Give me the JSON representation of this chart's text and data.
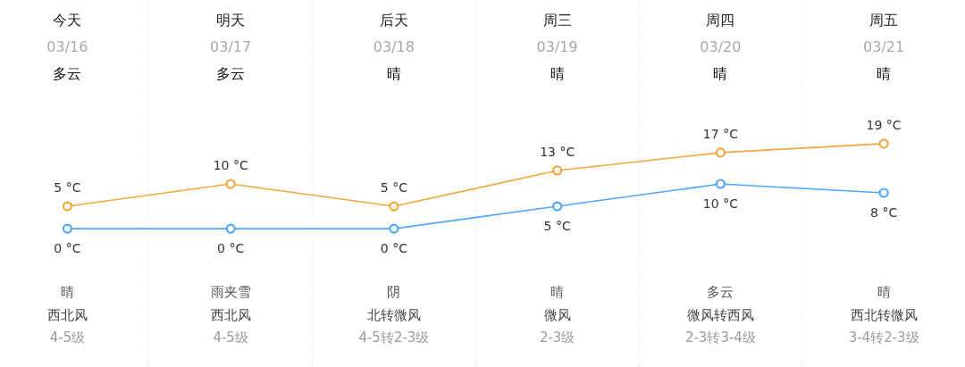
{
  "chart_data": {
    "type": "line",
    "categories": [
      "今天\n03/16\n多云",
      "明天\n03/17\n多云",
      "后天\n03/18\n晴",
      "周三\n03/19\n晴",
      "周四\n03/20\n晴",
      "周五\n03/21\n晴"
    ],
    "series": [
      {
        "color": "#f2a73b",
        "values": [
          5,
          10,
          5,
          13,
          17,
          19
        ],
        "value_labels": [
          "5 °C",
          "10 °C",
          "5 °C",
          "13 °C",
          "17 °C",
          "19 °C"
        ]
      },
      {
        "color": "#4da6ff",
        "values": [
          0,
          0,
          0,
          5,
          10,
          8
        ],
        "value_labels": [
          "0 °C",
          "0 °C",
          "0 °C",
          "5 °C",
          "10 °C",
          "8 °C"
        ]
      }
    ],
    "ylim": [
      -31,
      51
    ],
    "tick_labels": "x",
    "grid": "x",
    "marker": "circle",
    "annotations": [
      "晴",
      "雨夹雪",
      "阴",
      "晴",
      "多云",
      "晴",
      "西北风",
      "西北风",
      "北转微风",
      "微风",
      "微风转西风",
      "西北转微风",
      "4-5级",
      "4-5级",
      "4-5转2-3级",
      "2-3级",
      "2-3转3-4级",
      "3-4转2-3级"
    ]
  }
}
